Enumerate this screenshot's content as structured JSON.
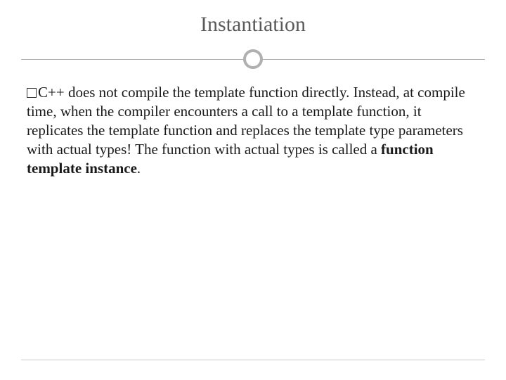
{
  "slide": {
    "title": "Instantiation",
    "title_color": "#595959",
    "title_fontsize": 30,
    "divider": {
      "line_color": "#b0b0b0",
      "circle_border_color": "#b0b0b0",
      "circle_border_width": 4,
      "circle_diameter": 28
    },
    "body": {
      "fontsize": 21,
      "text_color": "#1a1a1a",
      "bullet_marker": "hollow-square",
      "text_prefix": "C++ does not compile the template function directly. Instead, at compile time, when the compiler encounters a call to a template function, it replicates the template function and replaces the template type parameters with actual types! The function with actual types is called a ",
      "bold_term": "function template instance",
      "text_suffix": "."
    },
    "footer_line_color": "#c9c9c9",
    "background_color": "#ffffff"
  }
}
